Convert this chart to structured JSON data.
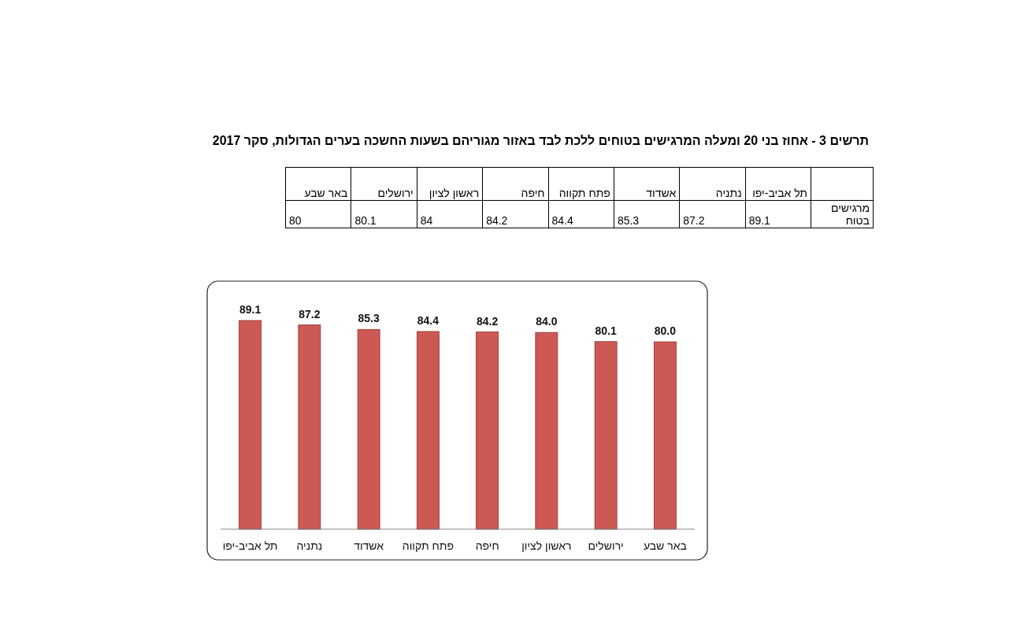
{
  "chart_data": {
    "type": "bar",
    "title": "תרשים 3 - אחוז בני 20 ומעלה המרגישים בטוחים ללכת לבד באזור מגוריהם בשעות החשכה בערים הגדולות, סקר 2017",
    "categories": [
      "תל אביב-יפו",
      "נתניה",
      "אשדוד",
      "פתח תקווה",
      "חיפה",
      "ראשון לציון",
      "ירושלים",
      "באר שבע"
    ],
    "values": [
      89.1,
      87.2,
      85.3,
      84.4,
      84.2,
      84.0,
      80.1,
      80.0
    ],
    "value_labels": [
      "89.1",
      "87.2",
      "85.3",
      "84.4",
      "84.2",
      "84.0",
      "80.1",
      "80.0"
    ],
    "color": "#cd5955",
    "annotations": [
      "מרגישים בטוח",
      "89.1",
      "87.2",
      "85.3",
      "84.4",
      "84.2",
      "84",
      "80.1",
      "80"
    ]
  }
}
